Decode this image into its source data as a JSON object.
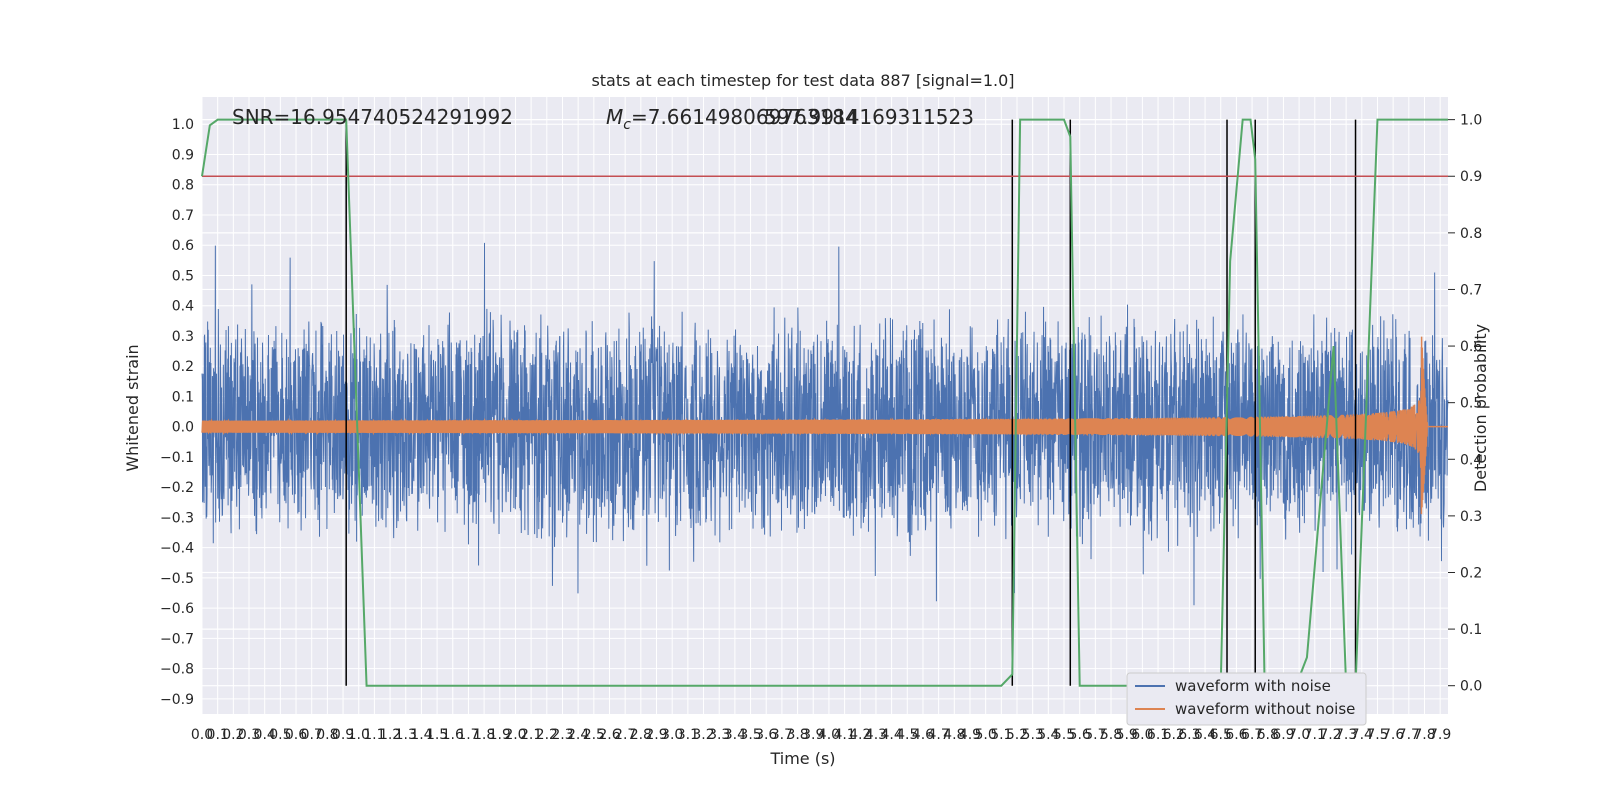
{
  "chart_data": {
    "type": "line",
    "title": "stats at each timestep for test data 887 [signal=1.0]",
    "xlabel": "Time (s)",
    "ylabel_left": "Whitened strain",
    "ylabel_right": "Detection probability",
    "annotations": {
      "snr": "SNR=16.954740524291992",
      "mc_prefix": "M",
      "mc_sub": "c",
      "mc_value": "=7.661498069763184",
      "overlap_text": "597.9914169311523"
    },
    "xlim": [
      0.0,
      7.95
    ],
    "x_tick_labels": [
      "0.0",
      "0.1",
      "0.2",
      "0.3",
      "0.4",
      "0.5",
      "0.6",
      "0.7",
      "0.8",
      "0.9",
      "1.0",
      "1.1",
      "1.2",
      "1.3",
      "1.4",
      "1.5",
      "1.6",
      "1.7",
      "1.8",
      "1.9",
      "2.0",
      "2.1",
      "2.2",
      "2.3",
      "2.4",
      "2.5",
      "2.6",
      "2.7",
      "2.8",
      "2.9",
      "3.0",
      "3.1",
      "3.2",
      "3.3",
      "3.4",
      "3.5",
      "3.6",
      "3.7",
      "3.8",
      "3.9",
      "4.0",
      "4.1",
      "4.2",
      "4.3",
      "4.4",
      "4.5",
      "4.6",
      "4.7",
      "4.8",
      "4.9",
      "5.0",
      "5.1",
      "5.2",
      "5.3",
      "5.4",
      "5.5",
      "5.6",
      "5.7",
      "5.8",
      "5.9",
      "6.0",
      "6.1",
      "6.2",
      "6.3",
      "6.4",
      "6.5",
      "6.6",
      "6.7",
      "6.8",
      "6.9",
      "7.0",
      "7.1",
      "7.2",
      "7.3",
      "7.4",
      "7.5",
      "7.6",
      "7.7",
      "7.8",
      "7.9"
    ],
    "ylim_left": [
      -0.95,
      1.09
    ],
    "y_left_tick_labels": [
      "−0.9",
      "−0.8",
      "−0.7",
      "−0.6",
      "−0.5",
      "−0.4",
      "−0.3",
      "−0.2",
      "−0.1",
      "0.0",
      "0.1",
      "0.2",
      "0.3",
      "0.4",
      "0.5",
      "0.6",
      "0.7",
      "0.8",
      "0.9",
      "1.0"
    ],
    "ylim_right": [
      -0.05,
      1.04
    ],
    "y_right_tick_labels": [
      "0.0",
      "0.1",
      "0.2",
      "0.3",
      "0.4",
      "0.5",
      "0.6",
      "0.7",
      "0.8",
      "0.9",
      "1.0"
    ],
    "threshold": 0.9,
    "vertical_lines": [
      0.92,
      5.17,
      5.54,
      6.54,
      6.72,
      7.36
    ],
    "noise_envelope_typical": 0.4,
    "chirp": {
      "start_amplitude": 0.02,
      "peak_amplitude": 0.35,
      "merger_time": 7.78,
      "ringdown_end": 7.82
    },
    "detection_probability": {
      "x": [
        0.0,
        0.05,
        0.1,
        0.9,
        0.92,
        1.05,
        5.1,
        5.17,
        5.22,
        5.5,
        5.54,
        5.6,
        6.5,
        6.56,
        6.64,
        6.69,
        6.72,
        6.78,
        6.98,
        7.05,
        7.22,
        7.3,
        7.36,
        7.5,
        7.95
      ],
      "y": [
        0.9,
        0.99,
        1.0,
        1.0,
        1.0,
        0.0,
        0.0,
        0.02,
        1.0,
        1.0,
        0.97,
        0.0,
        0.0,
        0.75,
        1.0,
        1.0,
        0.93,
        0.0,
        0.0,
        0.05,
        0.6,
        0.0,
        0.0,
        1.0,
        1.0
      ]
    },
    "legend_placement": "lower-right",
    "series": [
      {
        "name": "waveform with noise",
        "color": "#4c72b0"
      },
      {
        "name": "waveform without noise",
        "color": "#dd8452"
      }
    ],
    "extra_colors": {
      "detection": "#55a868",
      "threshold": "#c44e52",
      "markers": "#000000",
      "plot_bg": "#eaeaf2"
    }
  }
}
